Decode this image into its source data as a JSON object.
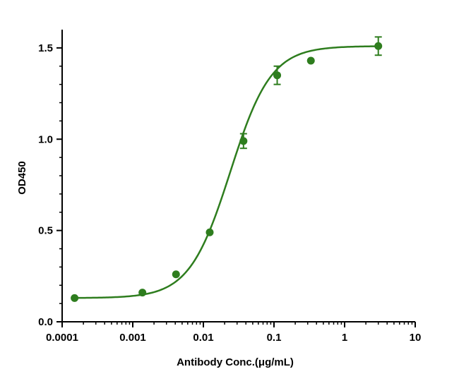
{
  "chart_data": {
    "type": "scatter",
    "title": "",
    "xlabel": "Antibody Conc.(μg/mL)",
    "ylabel": "OD450",
    "xscale": "log",
    "xlim": [
      0.0001,
      10
    ],
    "ylim": [
      0.0,
      1.6
    ],
    "x_ticks": [
      0.0001,
      0.001,
      0.01,
      0.1,
      1,
      10
    ],
    "x_tick_labels": [
      "0.0001",
      "0.001",
      "0.01",
      "0.1",
      "1",
      "10"
    ],
    "y_ticks": [
      0.0,
      0.5,
      1.0,
      1.5
    ],
    "y_tick_labels": [
      "0.0",
      "0.5",
      "1.0",
      "1.5"
    ],
    "grid": false,
    "color": "#2e7d1e",
    "series": [
      {
        "x": [
          0.00015,
          0.00137,
          0.0041,
          0.0123,
          0.037,
          0.111,
          0.333,
          3.0
        ],
        "y": [
          0.13,
          0.16,
          0.26,
          0.49,
          0.99,
          1.35,
          1.43,
          1.51
        ],
        "error": [
          0,
          0,
          0,
          0,
          0.04,
          0.05,
          0,
          0.05
        ]
      }
    ],
    "fit_curve": {
      "model": "4PL",
      "bottom": 0.13,
      "top": 1.51,
      "ec50": 0.024,
      "hill": 1.5
    }
  }
}
